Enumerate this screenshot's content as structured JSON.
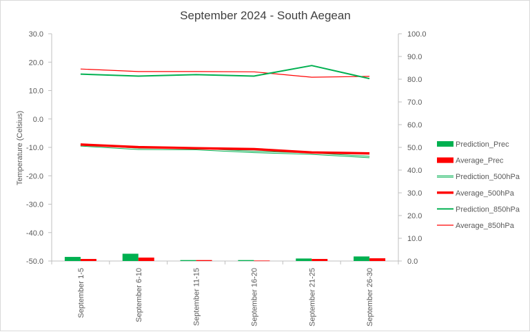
{
  "chart_data": {
    "type": "bar+line",
    "title": "September 2024 - South Aegean",
    "ylabel": "Temperature (Celsius)",
    "y2label": "",
    "categories": [
      "September 1-5",
      "September 6-10",
      "September 11-15",
      "September 16-20",
      "September 21-25",
      "September 26-30"
    ],
    "y_left": {
      "min": -50,
      "max": 30,
      "step": 10,
      "ticks": [
        "30.0",
        "20.0",
        "10.0",
        "0.0",
        "-10.0",
        "-20.0",
        "-30.0",
        "-40.0",
        "-50.0"
      ]
    },
    "y_right": {
      "min": 0,
      "max": 100,
      "step": 10,
      "ticks": [
        "100.0",
        "90.0",
        "80.0",
        "70.0",
        "60.0",
        "50.0",
        "40.0",
        "30.0",
        "20.0",
        "10.0",
        "0.0"
      ]
    },
    "series": [
      {
        "name": "Prediction_Prec",
        "kind": "bar",
        "axis": "right",
        "color": "#00b050",
        "values": [
          1.8,
          3.2,
          0.4,
          0.4,
          1.1,
          2.0
        ]
      },
      {
        "name": "Average_Prec",
        "kind": "bar",
        "axis": "right",
        "color": "#ff0000",
        "values": [
          0.9,
          1.5,
          0.4,
          0.2,
          0.9,
          1.2
        ]
      },
      {
        "name": "Prediction_500hPa",
        "kind": "line",
        "axis": "left",
        "color": "#00b050",
        "style": "double",
        "values": [
          -9.3,
          -10.5,
          -10.6,
          -11.6,
          -12.2,
          -13.4
        ]
      },
      {
        "name": "Average_500hPa",
        "kind": "line",
        "axis": "left",
        "color": "#ff0000",
        "style": "thick",
        "values": [
          -9.0,
          -9.9,
          -10.3,
          -10.6,
          -11.8,
          -12.1
        ]
      },
      {
        "name": "Prediction_850hPa",
        "kind": "line",
        "axis": "left",
        "color": "#00b050",
        "style": "normal",
        "values": [
          15.8,
          15.1,
          15.6,
          15.1,
          18.8,
          14.2
        ]
      },
      {
        "name": "Average_850hPa",
        "kind": "line",
        "axis": "left",
        "color": "#ff0000",
        "style": "thin",
        "values": [
          17.6,
          16.7,
          16.7,
          16.6,
          14.7,
          15.0
        ]
      }
    ],
    "legend": {
      "position": "right"
    },
    "grid": false
  }
}
